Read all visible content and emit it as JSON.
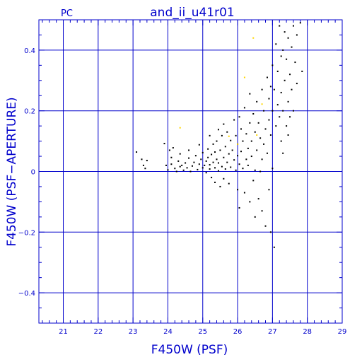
{
  "chart_data": {
    "type": "scatter",
    "corner_label": "PC",
    "title": "and_ii_u41r01",
    "xlabel": "F450W (PSF)",
    "ylabel": "F450W (PSF−APERTURE)",
    "xlim": [
      20.3,
      29
    ],
    "ylim": [
      -0.5,
      0.5
    ],
    "x_ticks": [
      21,
      22,
      23,
      24,
      25,
      26,
      27,
      28,
      29
    ],
    "y_ticks": [
      -0.4,
      -0.2,
      0,
      0.2,
      0.4
    ],
    "y_tick_labels": [
      "−0.4",
      "−0.2",
      "0",
      "0.2",
      "0.4"
    ],
    "grid": true,
    "colors": {
      "axes": "#0000cc",
      "points": "#000000",
      "highlight": "#ffd700"
    },
    "series": [
      {
        "color": "#000000",
        "points": [
          [
            23.1,
            0.064
          ],
          [
            23.25,
            0.04
          ],
          [
            23.3,
            0.02
          ],
          [
            23.35,
            0.01
          ],
          [
            23.4,
            0.036
          ],
          [
            23.9,
            0.092
          ],
          [
            23.95,
            0.02
          ],
          [
            24.0,
            0.005
          ],
          [
            24.05,
            0.07
          ],
          [
            24.1,
            0.046
          ],
          [
            24.1,
            0.024
          ],
          [
            24.15,
            0.078
          ],
          [
            24.2,
            0.01
          ],
          [
            24.25,
            0.0
          ],
          [
            24.3,
            0.034
          ],
          [
            24.35,
            0.016
          ],
          [
            24.35,
            0.058
          ],
          [
            24.4,
            0.02
          ],
          [
            24.45,
            0.004
          ],
          [
            24.5,
            0.028
          ],
          [
            24.55,
            0.012
          ],
          [
            24.6,
            0.044
          ],
          [
            24.6,
            0.07
          ],
          [
            24.65,
            0.0
          ],
          [
            24.7,
            0.018
          ],
          [
            24.75,
            0.03
          ],
          [
            24.8,
            0.052
          ],
          [
            24.85,
            0.006
          ],
          [
            24.9,
            0.024
          ],
          [
            24.9,
            0.088
          ],
          [
            24.95,
            0.04
          ],
          [
            25.0,
            0.012
          ],
          [
            25.0,
            0.062
          ],
          [
            25.05,
            0.02
          ],
          [
            25.1,
            0.034
          ],
          [
            25.1,
            -0.004
          ],
          [
            25.15,
            0.074
          ],
          [
            25.15,
            0.046
          ],
          [
            25.2,
            0.008
          ],
          [
            25.2,
            0.022
          ],
          [
            25.2,
            0.118
          ],
          [
            25.25,
            0.056
          ],
          [
            25.25,
            -0.02
          ],
          [
            25.3,
            0.03
          ],
          [
            25.3,
            0.09
          ],
          [
            25.35,
            0.012
          ],
          [
            25.35,
            0.064
          ],
          [
            25.35,
            -0.036
          ],
          [
            25.4,
            0.04
          ],
          [
            25.4,
            0.1
          ],
          [
            25.45,
            0.002
          ],
          [
            25.45,
            0.028
          ],
          [
            25.45,
            0.138
          ],
          [
            25.5,
            0.07
          ],
          [
            25.5,
            -0.05
          ],
          [
            25.55,
            0.016
          ],
          [
            25.55,
            0.118
          ],
          [
            25.6,
            0.046
          ],
          [
            25.6,
            0.156
          ],
          [
            25.6,
            -0.024
          ],
          [
            25.65,
            0.082
          ],
          [
            25.65,
            0.008
          ],
          [
            25.7,
            0.03
          ],
          [
            25.7,
            0.13
          ],
          [
            25.75,
            0.058
          ],
          [
            25.75,
            -0.04
          ],
          [
            25.8,
            0.102
          ],
          [
            25.8,
            0.014
          ],
          [
            25.85,
            0.07
          ],
          [
            25.9,
            0.038
          ],
          [
            25.9,
            0.17
          ],
          [
            25.95,
            0.004
          ],
          [
            25.95,
            0.118
          ],
          [
            26.0,
            0.052
          ],
          [
            26.0,
            0.09
          ],
          [
            26.0,
            -0.06
          ],
          [
            26.05,
            0.18
          ],
          [
            26.05,
            0.024
          ],
          [
            26.05,
            -0.12
          ],
          [
            26.1,
            0.066
          ],
          [
            26.1,
            0.14
          ],
          [
            26.15,
            0.01
          ],
          [
            26.15,
            0.1
          ],
          [
            26.2,
            0.21
          ],
          [
            26.2,
            -0.07
          ],
          [
            26.25,
            0.04
          ],
          [
            26.25,
            0.124
          ],
          [
            26.3,
            0.076
          ],
          [
            26.3,
            0.02
          ],
          [
            26.35,
            0.256
          ],
          [
            26.35,
            0.16
          ],
          [
            26.35,
            -0.1
          ],
          [
            26.4,
            0.05
          ],
          [
            26.4,
            0.1
          ],
          [
            26.45,
            0.19
          ],
          [
            26.45,
            -0.03
          ],
          [
            26.5,
            0.13
          ],
          [
            26.5,
            0.004
          ],
          [
            26.5,
            -0.15
          ],
          [
            26.55,
            0.23
          ],
          [
            26.55,
            0.07
          ],
          [
            26.6,
            0.16
          ],
          [
            26.6,
            -0.09
          ],
          [
            26.65,
            0.0
          ],
          [
            26.65,
            0.11
          ],
          [
            26.7,
            0.27
          ],
          [
            26.7,
            0.04
          ],
          [
            26.7,
            -0.13
          ],
          [
            26.75,
            0.2
          ],
          [
            26.75,
            0.09
          ],
          [
            26.8,
            0.14
          ],
          [
            26.8,
            -0.18
          ],
          [
            26.85,
            0.31
          ],
          [
            26.85,
            0.06
          ],
          [
            26.9,
            0.24
          ],
          [
            26.9,
            0.17
          ],
          [
            26.9,
            -0.06
          ],
          [
            26.95,
            0.12
          ],
          [
            26.95,
            -0.2
          ],
          [
            27.0,
            0.35
          ],
          [
            27.0,
            0.2
          ],
          [
            27.0,
            0.01
          ],
          [
            27.05,
            0.27
          ],
          [
            27.05,
            -0.25
          ],
          [
            27.1,
            0.15
          ],
          [
            27.1,
            0.42
          ],
          [
            27.15,
            0.22
          ],
          [
            27.15,
            0.33
          ],
          [
            27.2,
            0.18
          ],
          [
            27.2,
            0.48
          ],
          [
            27.25,
            0.26
          ],
          [
            27.25,
            0.1
          ],
          [
            27.3,
            0.4
          ],
          [
            27.3,
            0.2
          ],
          [
            27.35,
            0.46
          ],
          [
            27.35,
            0.3
          ],
          [
            27.4,
            0.15
          ],
          [
            27.4,
            0.37
          ],
          [
            27.45,
            0.23
          ],
          [
            27.45,
            0.44
          ],
          [
            27.5,
            0.32
          ],
          [
            27.5,
            0.18
          ],
          [
            27.55,
            0.41
          ],
          [
            27.55,
            0.27
          ],
          [
            27.6,
            0.48
          ],
          [
            27.6,
            0.2
          ],
          [
            27.65,
            0.36
          ],
          [
            27.7,
            0.29
          ],
          [
            27.7,
            0.45
          ],
          [
            27.8,
            0.49
          ],
          [
            27.85,
            0.33
          ],
          [
            27.3,
            0.06
          ],
          [
            27.45,
            0.12
          ],
          [
            27.25,
            0.38
          ],
          [
            26.95,
            0.28
          ]
        ]
      },
      {
        "color": "#ffd700",
        "points": [
          [
            24.35,
            0.144
          ],
          [
            25.75,
            0.116
          ],
          [
            26.45,
            0.44
          ],
          [
            26.2,
            0.31
          ],
          [
            26.0,
            0.09
          ],
          [
            26.55,
            0.12
          ],
          [
            26.7,
            0.222
          ]
        ]
      }
    ]
  }
}
